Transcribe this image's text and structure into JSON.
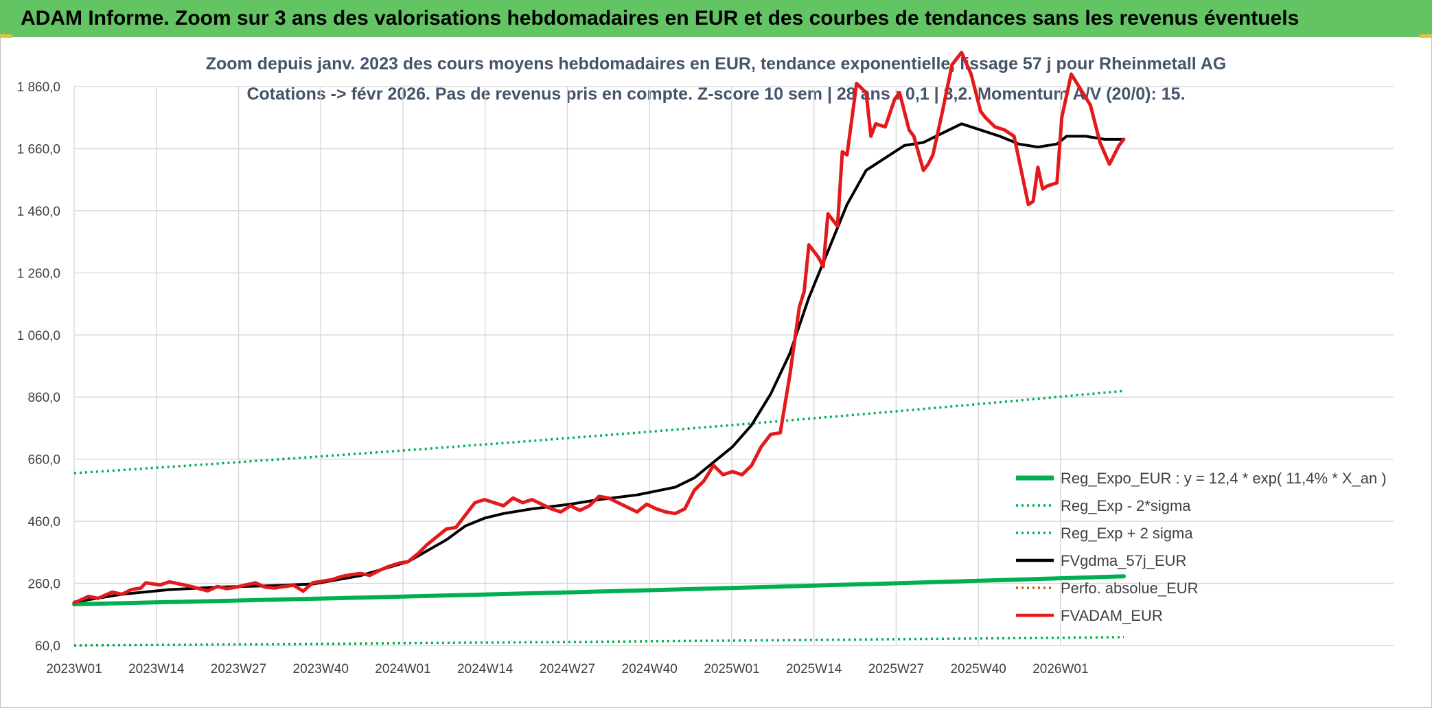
{
  "header": {
    "title": "ADAM Informe. Zoom sur 3 ans des valorisations hebdomadaires en EUR et des courbes de tendances sans les revenus éventuels"
  },
  "chart_data": {
    "type": "line",
    "title_line1": "Zoom depuis janv. 2023 des cours moyens hebdomadaires en EUR, tendance exponentielle, lissage 57 j pour Rheinmetall AG",
    "title_line2": "Cotations -> févr 2026. Pas de revenus pris en compte. Z-score 10 sem | 28 ans : 0,1 | 3,2. Momentum A/V (20/0): 15.",
    "ylim": [
      60,
      1960
    ],
    "yticks": [
      "60,0",
      "260,0",
      "460,0",
      "660,0",
      "860,0",
      "1 060,0",
      "1 260,0",
      "1 460,0",
      "1 660,0",
      "1 860,0"
    ],
    "ytick_values": [
      60,
      260,
      460,
      660,
      860,
      1060,
      1260,
      1460,
      1660,
      1860
    ],
    "xticks": [
      "2023W01",
      "2023W14",
      "2023W27",
      "2023W40",
      "2024W01",
      "2024W14",
      "2024W27",
      "2024W40",
      "2025W01",
      "2025W14",
      "2025W27",
      "2025W40",
      "2026W01"
    ],
    "n_weeks": 166,
    "legend": [
      {
        "label": "Reg_Expo_EUR : y = 12,4 * exp( 11,4% *  X_an )",
        "color": "#00b050",
        "style": "solid-thick"
      },
      {
        "label": "Reg_Exp - 2*sigma",
        "color": "#00b050",
        "style": "dotted"
      },
      {
        "label": "Reg_Exp + 2 sigma",
        "color": "#00b050",
        "style": "dotted"
      },
      {
        "label": "FVgdma_57j_EUR",
        "color": "#000000",
        "style": "solid"
      },
      {
        "label": "Perfo. absolue_EUR",
        "color": "#c55a11",
        "style": "dotted"
      },
      {
        "label": "FVADAM_EUR",
        "color": "#e31a1c",
        "style": "solid"
      }
    ],
    "series": [
      {
        "name": "FVADAM_EUR",
        "color": "#e31a1c",
        "points": [
          [
            0,
            197
          ],
          [
            3,
            218
          ],
          [
            5,
            212
          ],
          [
            8,
            232
          ],
          [
            10,
            225
          ],
          [
            12,
            240
          ],
          [
            14,
            245
          ],
          [
            15,
            262
          ],
          [
            18,
            255
          ],
          [
            20,
            265
          ],
          [
            24,
            252
          ],
          [
            26,
            244
          ],
          [
            28,
            236
          ],
          [
            30,
            250
          ],
          [
            32,
            243
          ],
          [
            34,
            248
          ],
          [
            36,
            255
          ],
          [
            38,
            262
          ],
          [
            40,
            248
          ],
          [
            42,
            245
          ],
          [
            44,
            250
          ],
          [
            46,
            254
          ],
          [
            48,
            235
          ],
          [
            50,
            262
          ],
          [
            54,
            272
          ],
          [
            56,
            282
          ],
          [
            58,
            288
          ],
          [
            60,
            292
          ],
          [
            62,
            286
          ],
          [
            64,
            302
          ],
          [
            66,
            315
          ],
          [
            68,
            325
          ],
          [
            70,
            330
          ],
          [
            72,
            355
          ],
          [
            74,
            385
          ],
          [
            76,
            410
          ],
          [
            78,
            435
          ],
          [
            80,
            440
          ],
          [
            82,
            480
          ],
          [
            84,
            520
          ],
          [
            86,
            530
          ],
          [
            88,
            520
          ],
          [
            90,
            510
          ],
          [
            92,
            535
          ],
          [
            94,
            520
          ],
          [
            96,
            530
          ],
          [
            98,
            515
          ],
          [
            100,
            500
          ],
          [
            102,
            490
          ],
          [
            104,
            510
          ],
          [
            106,
            495
          ],
          [
            108,
            510
          ],
          [
            110,
            540
          ],
          [
            112,
            535
          ],
          [
            114,
            520
          ],
          [
            116,
            505
          ],
          [
            118,
            490
          ],
          [
            120,
            515
          ],
          [
            122,
            500
          ],
          [
            124,
            490
          ],
          [
            126,
            485
          ],
          [
            128,
            500
          ],
          [
            130,
            560
          ],
          [
            132,
            590
          ],
          [
            134,
            640
          ],
          [
            136,
            610
          ],
          [
            138,
            620
          ],
          [
            140,
            610
          ],
          [
            142,
            640
          ],
          [
            144,
            700
          ],
          [
            146,
            740
          ],
          [
            148,
            745
          ],
          [
            150,
            930
          ],
          [
            152,
            1150
          ],
          [
            153,
            1200
          ],
          [
            154,
            1350
          ],
          [
            156,
            1310
          ],
          [
            157,
            1280
          ],
          [
            158,
            1450
          ],
          [
            160,
            1410
          ],
          [
            161,
            1650
          ],
          [
            162,
            1640
          ],
          [
            164,
            1870
          ],
          [
            166,
            1840
          ],
          [
            167,
            1700
          ],
          [
            168,
            1740
          ],
          [
            170,
            1730
          ],
          [
            172,
            1820
          ],
          [
            173,
            1840
          ],
          [
            175,
            1720
          ],
          [
            176,
            1700
          ],
          [
            178,
            1590
          ],
          [
            179,
            1610
          ],
          [
            180,
            1640
          ],
          [
            182,
            1780
          ],
          [
            184,
            1930
          ],
          [
            186,
            1970
          ],
          [
            188,
            1900
          ],
          [
            190,
            1780
          ],
          [
            191,
            1760
          ],
          [
            193,
            1730
          ],
          [
            195,
            1720
          ],
          [
            197,
            1700
          ],
          [
            200,
            1480
          ],
          [
            201,
            1490
          ],
          [
            202,
            1600
          ],
          [
            203,
            1530
          ],
          [
            204,
            1540
          ],
          [
            206,
            1550
          ],
          [
            207,
            1760
          ],
          [
            209,
            1900
          ],
          [
            211,
            1850
          ],
          [
            213,
            1800
          ],
          [
            215,
            1680
          ],
          [
            217,
            1610
          ],
          [
            219,
            1670
          ],
          [
            220,
            1690
          ]
        ]
      },
      {
        "name": "FVgdma_57j_EUR",
        "color": "#000000",
        "points": [
          [
            0,
            200
          ],
          [
            10,
            225
          ],
          [
            20,
            240
          ],
          [
            30,
            248
          ],
          [
            40,
            252
          ],
          [
            50,
            258
          ],
          [
            60,
            285
          ],
          [
            70,
            330
          ],
          [
            78,
            400
          ],
          [
            82,
            445
          ],
          [
            86,
            470
          ],
          [
            90,
            485
          ],
          [
            96,
            500
          ],
          [
            104,
            515
          ],
          [
            110,
            530
          ],
          [
            118,
            545
          ],
          [
            126,
            570
          ],
          [
            130,
            600
          ],
          [
            134,
            650
          ],
          [
            138,
            700
          ],
          [
            142,
            770
          ],
          [
            146,
            870
          ],
          [
            150,
            1000
          ],
          [
            154,
            1180
          ],
          [
            158,
            1330
          ],
          [
            162,
            1480
          ],
          [
            166,
            1590
          ],
          [
            170,
            1630
          ],
          [
            174,
            1670
          ],
          [
            178,
            1680
          ],
          [
            182,
            1710
          ],
          [
            186,
            1740
          ],
          [
            190,
            1720
          ],
          [
            194,
            1700
          ],
          [
            198,
            1675
          ],
          [
            202,
            1665
          ],
          [
            206,
            1675
          ],
          [
            208,
            1700
          ],
          [
            212,
            1700
          ],
          [
            216,
            1690
          ],
          [
            220,
            1690
          ]
        ]
      },
      {
        "name": "Reg_Expo_EUR : y = 12,4 * exp( 11,4% *  X_an )",
        "color": "#00b050",
        "points": [
          [
            0,
            193
          ],
          [
            220,
            283
          ]
        ]
      },
      {
        "name": "Reg_Exp - 2*sigma",
        "color": "#00b050",
        "points": [
          [
            0,
            60
          ],
          [
            220,
            87
          ]
        ]
      },
      {
        "name": "Reg_Exp + 2 sigma",
        "color": "#00b050",
        "points": [
          [
            0,
            615
          ],
          [
            220,
            880
          ]
        ]
      }
    ]
  }
}
